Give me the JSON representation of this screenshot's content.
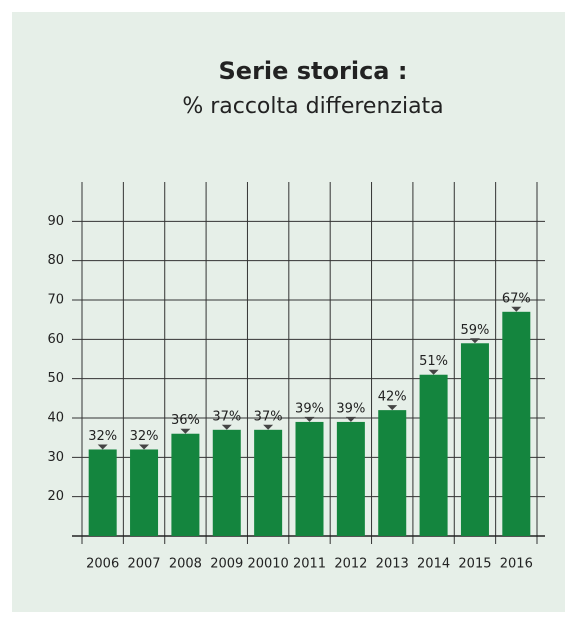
{
  "chart_data": {
    "type": "bar",
    "title": "Serie storica :",
    "subtitle": "% raccolta differenziata",
    "categories": [
      "2006",
      "2007",
      "2008",
      "2009",
      "20010",
      "2011",
      "2012",
      "2013",
      "2014",
      "2015",
      "2016"
    ],
    "values": [
      32,
      32,
      36,
      37,
      37,
      39,
      39,
      42,
      51,
      59,
      67
    ],
    "value_labels": [
      "32%",
      "32%",
      "36%",
      "37%",
      "37%",
      "39%",
      "39%",
      "42%",
      "51%",
      "59%",
      "67%"
    ],
    "color": "#14853e",
    "ylim": [
      10,
      100
    ],
    "yticks": [
      20,
      30,
      40,
      50,
      60,
      70,
      80,
      90
    ],
    "grid": true
  }
}
